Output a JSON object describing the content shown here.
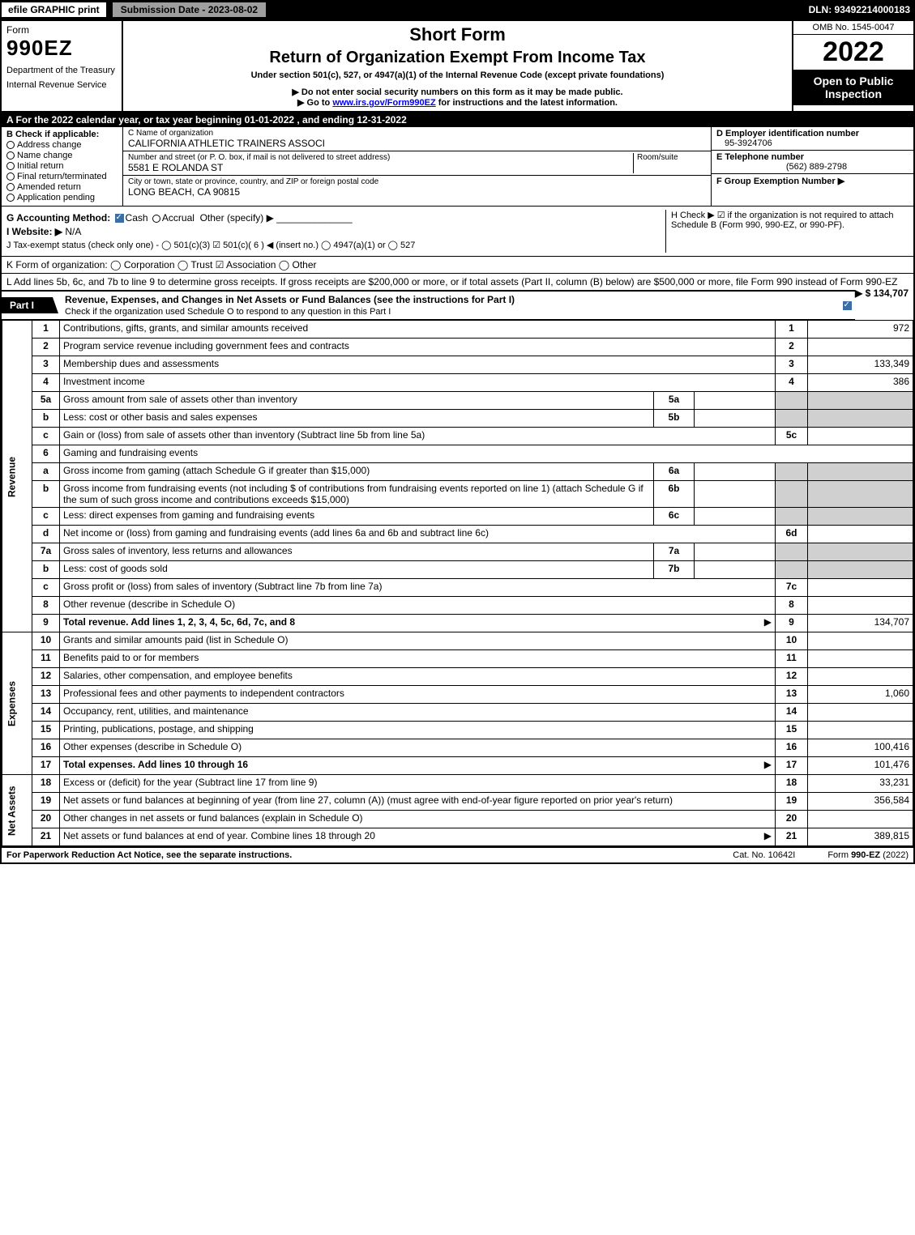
{
  "topbar": {
    "efile": "efile GRAPHIC print",
    "submission": "Submission Date - 2023-08-02",
    "dln": "DLN: 93492214000183"
  },
  "header": {
    "form_label": "Form",
    "form_number": "990EZ",
    "dept1": "Department of the Treasury",
    "dept2": "Internal Revenue Service",
    "title1": "Short Form",
    "title2": "Return of Organization Exempt From Income Tax",
    "sub1": "Under section 501(c), 527, or 4947(a)(1) of the Internal Revenue Code (except private foundations)",
    "sub2": "▶ Do not enter social security numbers on this form as it may be made public.",
    "sub3_pre": "▶ Go to ",
    "sub3_link": "www.irs.gov/Form990EZ",
    "sub3_post": " for instructions and the latest information.",
    "omb": "OMB No. 1545-0047",
    "year": "2022",
    "open_to": "Open to Public Inspection"
  },
  "A": "A  For the 2022 calendar year, or tax year beginning 01-01-2022 , and ending 12-31-2022",
  "B": {
    "hdr": "B  Check if applicable:",
    "opts": [
      "Address change",
      "Name change",
      "Initial return",
      "Final return/terminated",
      "Amended return",
      "Application pending"
    ]
  },
  "C": {
    "name_lbl": "C Name of organization",
    "name_val": "CALIFORNIA ATHLETIC TRAINERS ASSOCI",
    "street_lbl": "Number and street (or P. O. box, if mail is not delivered to street address)",
    "room_lbl": "Room/suite",
    "street_val": "5581 E ROLANDA ST",
    "city_lbl": "City or town, state or province, country, and ZIP or foreign postal code",
    "city_val": "LONG BEACH, CA  90815"
  },
  "D": {
    "lbl": "D Employer identification number",
    "val": "95-3924706"
  },
  "E": {
    "lbl": "E Telephone number",
    "val": "(562) 889-2798"
  },
  "F": {
    "lbl": "F Group Exemption Number ▶",
    "val": ""
  },
  "G": {
    "lbl": "G Accounting Method:",
    "cash": "Cash",
    "accrual": "Accrual",
    "other": "Other (specify) ▶"
  },
  "H": "H  Check ▶ ☑ if the organization is not required to attach Schedule B (Form 990, 990-EZ, or 990-PF).",
  "I": {
    "lbl": "I Website: ▶",
    "val": "N/A"
  },
  "J": "J Tax-exempt status (check only one) - ◯ 501(c)(3) ☑ 501(c)( 6 ) ◀ (insert no.) ◯ 4947(a)(1) or ◯ 527",
  "K": "K Form of organization:  ◯ Corporation  ◯ Trust  ☑ Association  ◯ Other",
  "L": {
    "text": "L Add lines 5b, 6c, and 7b to line 9 to determine gross receipts. If gross receipts are $200,000 or more, or if total assets (Part II, column (B) below) are $500,000 or more, file Form 990 instead of Form 990-EZ",
    "amt": "▶ $ 134,707"
  },
  "part1": {
    "tab": "Part I",
    "title": "Revenue, Expenses, and Changes in Net Assets or Fund Balances (see the instructions for Part I)",
    "subtitle": "Check if the organization used Schedule O to respond to any question in this Part I"
  },
  "side": {
    "revenue": "Revenue",
    "expenses": "Expenses",
    "netassets": "Net Assets"
  },
  "rows": [
    {
      "n": "1",
      "d": "Contributions, gifts, grants, and similar amounts received",
      "r": "1",
      "a": "972"
    },
    {
      "n": "2",
      "d": "Program service revenue including government fees and contracts",
      "r": "2",
      "a": ""
    },
    {
      "n": "3",
      "d": "Membership dues and assessments",
      "r": "3",
      "a": "133,349"
    },
    {
      "n": "4",
      "d": "Investment income",
      "r": "4",
      "a": "386"
    },
    {
      "n": "5a",
      "d": "Gross amount from sale of assets other than inventory",
      "sb": "5a",
      "sv": ""
    },
    {
      "n": "b",
      "d": "Less: cost or other basis and sales expenses",
      "sb": "5b",
      "sv": ""
    },
    {
      "n": "c",
      "d": "Gain or (loss) from sale of assets other than inventory (Subtract line 5b from line 5a)",
      "r": "5c",
      "a": ""
    },
    {
      "n": "6",
      "d": "Gaming and fundraising events"
    },
    {
      "n": "a",
      "d": "Gross income from gaming (attach Schedule G if greater than $15,000)",
      "sb": "6a",
      "sv": ""
    },
    {
      "n": "b",
      "d": "Gross income from fundraising events (not including $                    of contributions from fundraising events reported on line 1) (attach Schedule G if the sum of such gross income and contributions exceeds $15,000)",
      "sb": "6b",
      "sv": ""
    },
    {
      "n": "c",
      "d": "Less: direct expenses from gaming and fundraising events",
      "sb": "6c",
      "sv": ""
    },
    {
      "n": "d",
      "d": "Net income or (loss) from gaming and fundraising events (add lines 6a and 6b and subtract line 6c)",
      "r": "6d",
      "a": ""
    },
    {
      "n": "7a",
      "d": "Gross sales of inventory, less returns and allowances",
      "sb": "7a",
      "sv": ""
    },
    {
      "n": "b",
      "d": "Less: cost of goods sold",
      "sb": "7b",
      "sv": ""
    },
    {
      "n": "c",
      "d": "Gross profit or (loss) from sales of inventory (Subtract line 7b from line 7a)",
      "r": "7c",
      "a": ""
    },
    {
      "n": "8",
      "d": "Other revenue (describe in Schedule O)",
      "r": "8",
      "a": ""
    },
    {
      "n": "9",
      "d": "Total revenue. Add lines 1, 2, 3, 4, 5c, 6d, 7c, and 8",
      "r": "9",
      "a": "134,707",
      "bold": true,
      "arrow": true
    }
  ],
  "exp_rows": [
    {
      "n": "10",
      "d": "Grants and similar amounts paid (list in Schedule O)",
      "r": "10",
      "a": ""
    },
    {
      "n": "11",
      "d": "Benefits paid to or for members",
      "r": "11",
      "a": ""
    },
    {
      "n": "12",
      "d": "Salaries, other compensation, and employee benefits",
      "r": "12",
      "a": ""
    },
    {
      "n": "13",
      "d": "Professional fees and other payments to independent contractors",
      "r": "13",
      "a": "1,060"
    },
    {
      "n": "14",
      "d": "Occupancy, rent, utilities, and maintenance",
      "r": "14",
      "a": ""
    },
    {
      "n": "15",
      "d": "Printing, publications, postage, and shipping",
      "r": "15",
      "a": ""
    },
    {
      "n": "16",
      "d": "Other expenses (describe in Schedule O)",
      "r": "16",
      "a": "100,416"
    },
    {
      "n": "17",
      "d": "Total expenses. Add lines 10 through 16",
      "r": "17",
      "a": "101,476",
      "bold": true,
      "arrow": true
    }
  ],
  "net_rows": [
    {
      "n": "18",
      "d": "Excess or (deficit) for the year (Subtract line 17 from line 9)",
      "r": "18",
      "a": "33,231"
    },
    {
      "n": "19",
      "d": "Net assets or fund balances at beginning of year (from line 27, column (A)) (must agree with end-of-year figure reported on prior year's return)",
      "r": "19",
      "a": "356,584"
    },
    {
      "n": "20",
      "d": "Other changes in net assets or fund balances (explain in Schedule O)",
      "r": "20",
      "a": ""
    },
    {
      "n": "21",
      "d": "Net assets or fund balances at end of year. Combine lines 18 through 20",
      "r": "21",
      "a": "389,815",
      "arrow": true
    }
  ],
  "footer": {
    "left": "For Paperwork Reduction Act Notice, see the separate instructions.",
    "center": "Cat. No. 10642I",
    "right": "Form 990-EZ (2022)"
  },
  "colors": {
    "black": "#000000",
    "white": "#ffffff",
    "shade": "#d0d0d0",
    "topgrey": "#9e9e9e",
    "check": "#3a6ea5"
  }
}
